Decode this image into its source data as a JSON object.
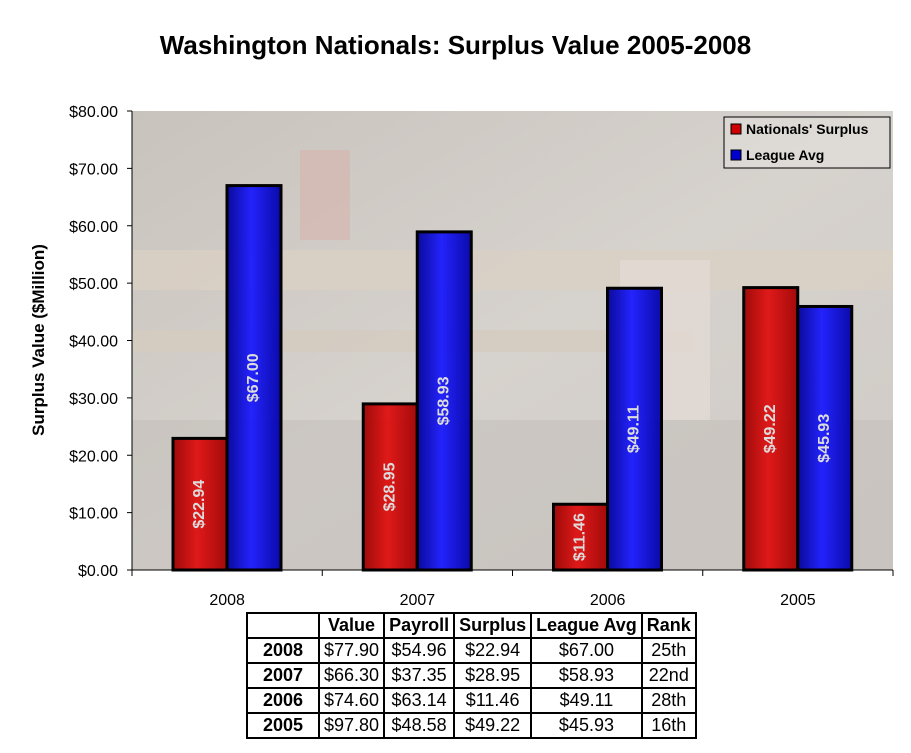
{
  "chart_data": {
    "type": "bar",
    "title": "Washington Nationals: Surplus Value 2005-2008",
    "xlabel": "",
    "ylabel": "Surplus Value ($Million)",
    "ylim": [
      0,
      80
    ],
    "yticks": [
      "$0.00",
      "$10.00",
      "$20.00",
      "$30.00",
      "$40.00",
      "$50.00",
      "$60.00",
      "$70.00",
      "$80.00"
    ],
    "categories": [
      "2008",
      "2007",
      "2006",
      "2005"
    ],
    "series": [
      {
        "name": "Nationals' Surplus",
        "color": "#cc0000",
        "values": [
          22.94,
          28.95,
          11.46,
          49.22
        ],
        "labels": [
          "$22.94",
          "$28.95",
          "$11.46",
          "$49.22"
        ]
      },
      {
        "name": "League Avg",
        "color": "#0000cc",
        "values": [
          67.0,
          58.93,
          49.11,
          45.93
        ],
        "labels": [
          "$67.00",
          "$58.93",
          "$49.11",
          "$45.93"
        ]
      }
    ],
    "legend_position": "top-right",
    "grid": false,
    "background": "faded photo of a baseball dugout"
  },
  "table": {
    "headers": [
      "",
      "Value",
      "Payroll",
      "Surplus",
      "League Avg",
      "Rank"
    ],
    "rows": [
      [
        "2008",
        "$77.90",
        "$54.96",
        "$22.94",
        "$67.00",
        "25th"
      ],
      [
        "2007",
        "$66.30",
        "$37.35",
        "$28.95",
        "$58.93",
        "22nd"
      ],
      [
        "2006",
        "$74.60",
        "$63.14",
        "$11.46",
        "$49.11",
        "28th"
      ],
      [
        "2005",
        "$97.80",
        "$48.58",
        "$49.22",
        "$45.93",
        "16th"
      ]
    ]
  }
}
